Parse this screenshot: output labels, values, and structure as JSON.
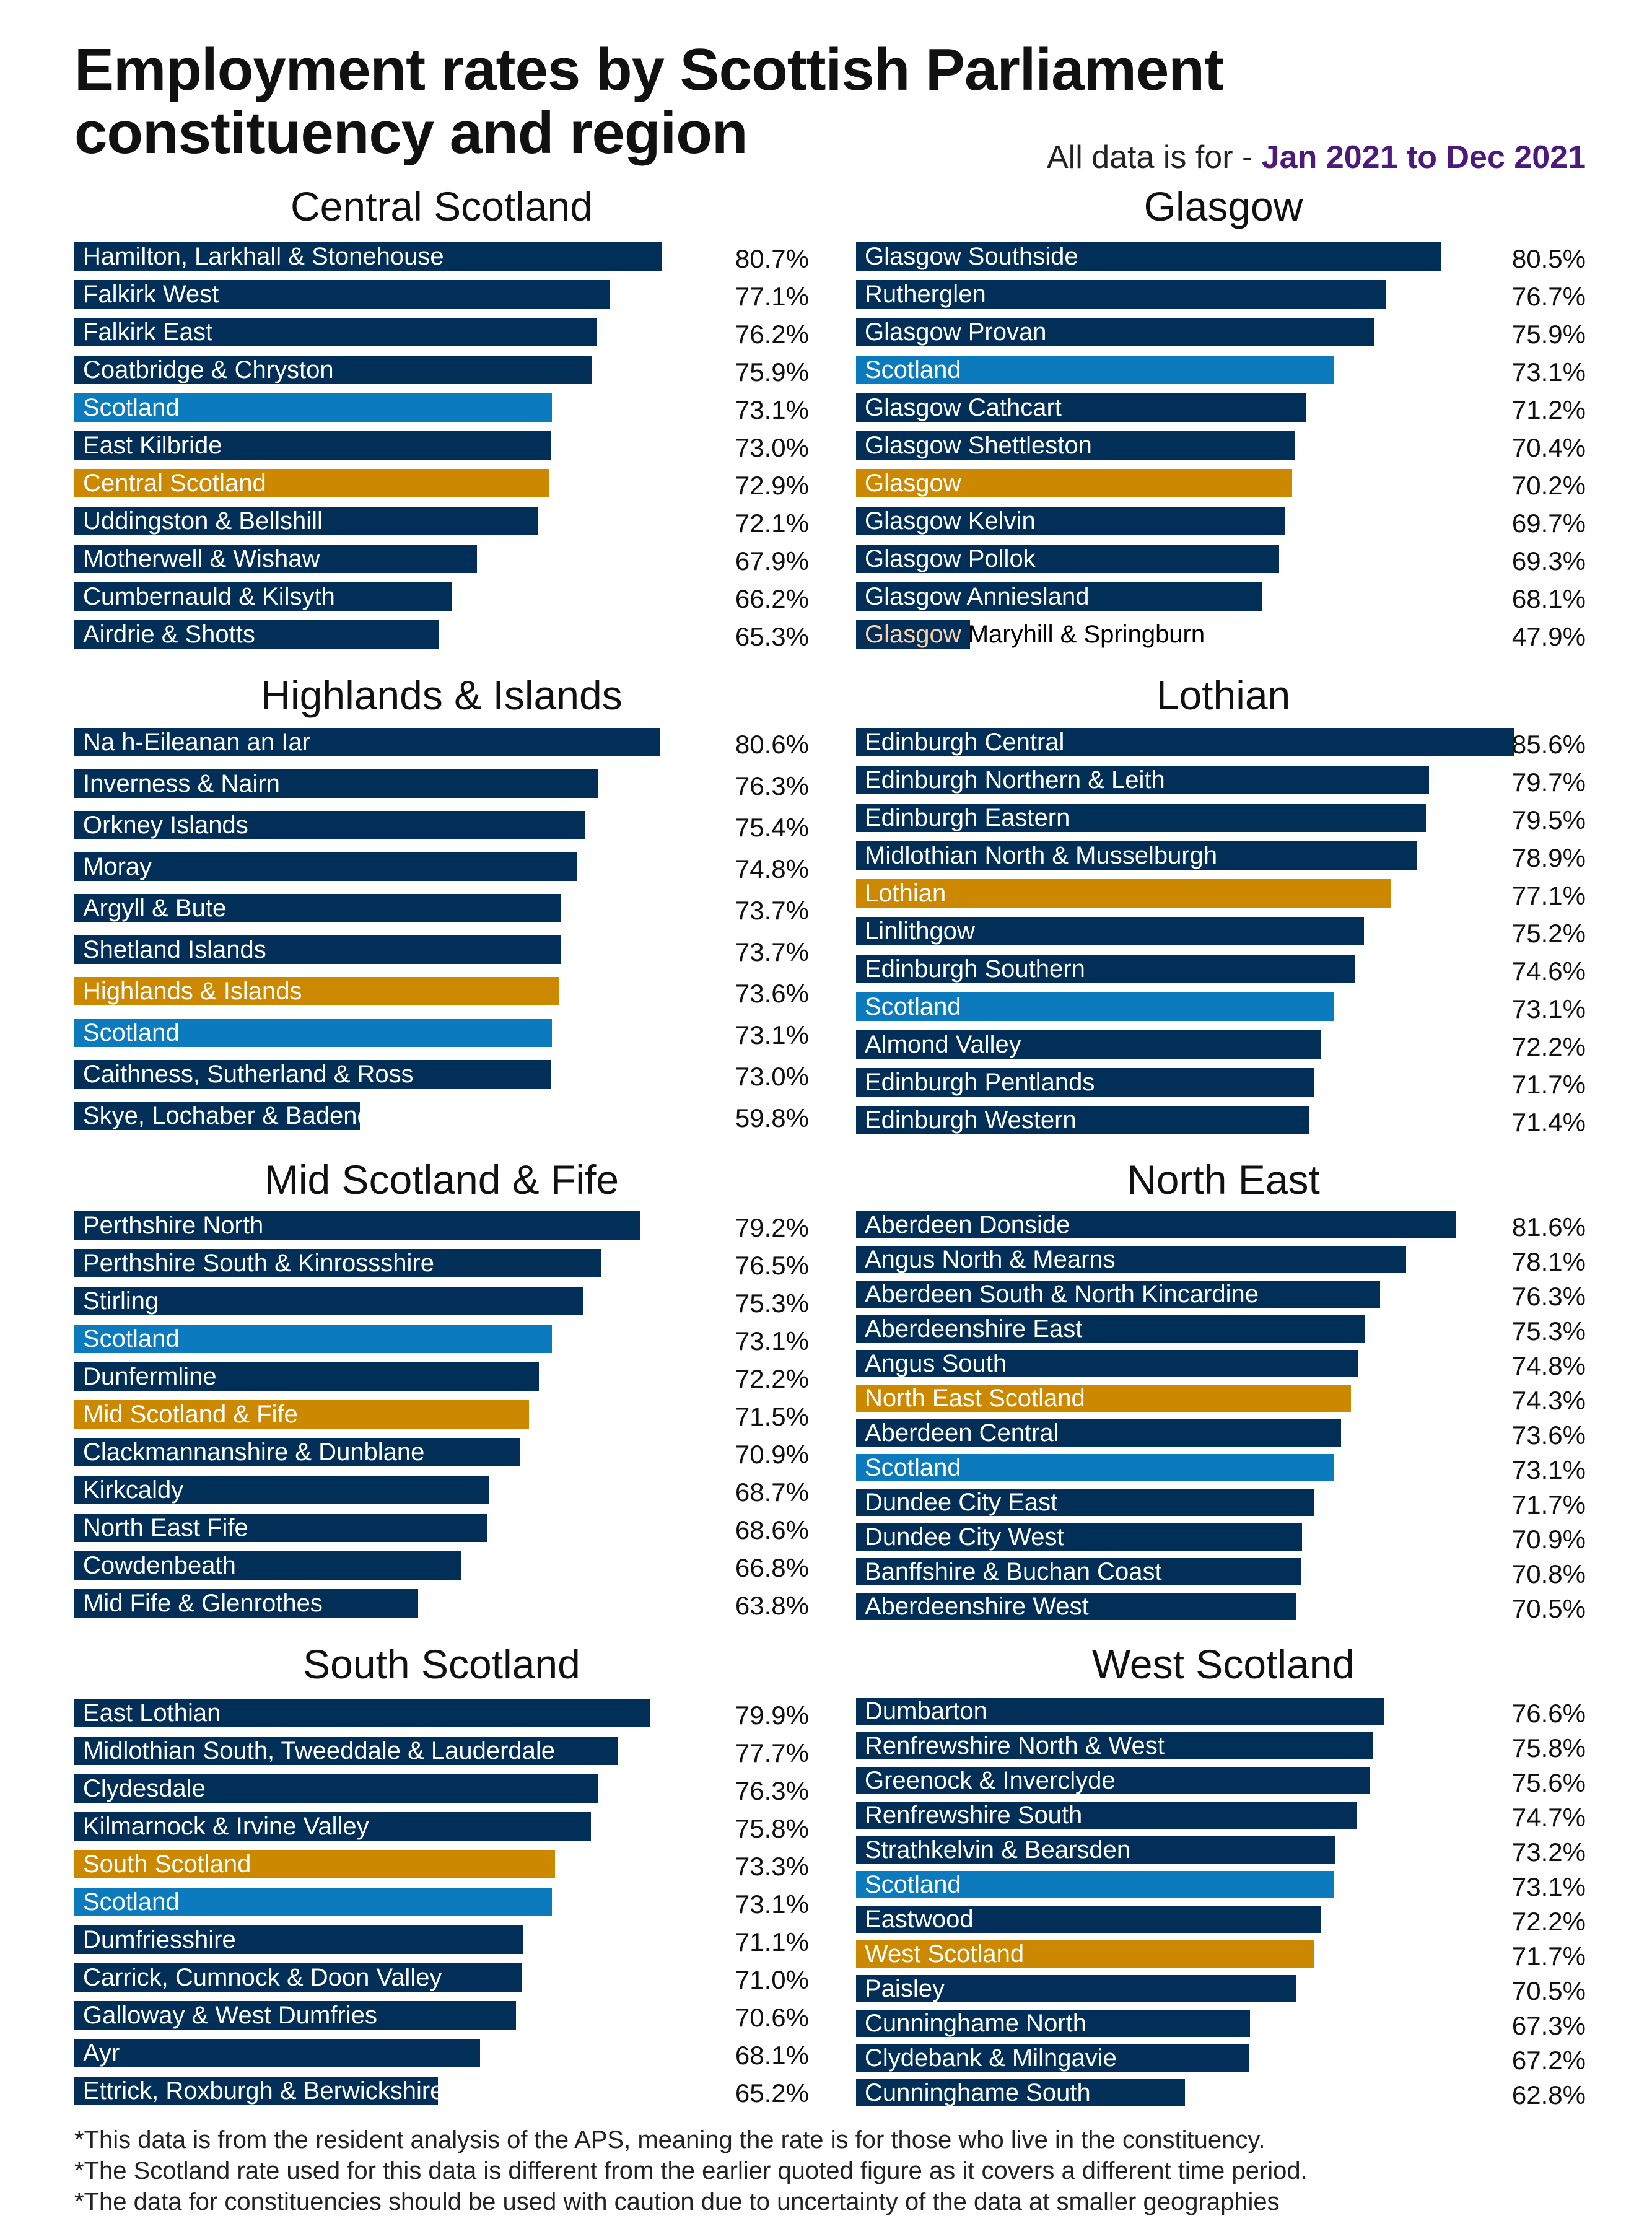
{
  "title": "Employment rates by Scottish Parliament constituency and region",
  "subtitle": {
    "prefix": "All data is for - ",
    "period": "Jan 2021 to Dec 2021"
  },
  "colors": {
    "constituency": "#012f57",
    "scotland": "#0b7bbd",
    "region": "#cc8900",
    "period": "#4b1a7a"
  },
  "footnotes": [
    "*This data is from the resident analysis of the APS, meaning the rate is for those who live in the constituency.",
    "*The Scotland rate used for this data is different from the earlier quoted figure as it covers a different time period.",
    "*The data for constituencies should be used with caution due to uncertainty of the data at smaller geographies"
  ],
  "chart_data": [
    {
      "type": "bar",
      "orientation": "horizontal",
      "title": "Central Scotland",
      "unit": "%",
      "rows": [
        {
          "label": "Hamilton, Larkhall & Stonehouse",
          "value": 80.7,
          "kind": "constituency"
        },
        {
          "label": "Falkirk West",
          "value": 77.1,
          "kind": "constituency"
        },
        {
          "label": "Falkirk East",
          "value": 76.2,
          "kind": "constituency"
        },
        {
          "label": "Coatbridge & Chryston",
          "value": 75.9,
          "kind": "constituency"
        },
        {
          "label": "Scotland",
          "value": 73.1,
          "kind": "scotland"
        },
        {
          "label": "East Kilbride",
          "value": 73.0,
          "kind": "constituency"
        },
        {
          "label": "Central Scotland",
          "value": 72.9,
          "kind": "region"
        },
        {
          "label": "Uddingston & Bellshill",
          "value": 72.1,
          "kind": "constituency"
        },
        {
          "label": "Motherwell & Wishaw",
          "value": 67.9,
          "kind": "constituency"
        },
        {
          "label": "Cumbernauld & Kilsyth",
          "value": 66.2,
          "kind": "constituency"
        },
        {
          "label": "Airdrie & Shotts",
          "value": 65.3,
          "kind": "constituency"
        }
      ]
    },
    {
      "type": "bar",
      "orientation": "horizontal",
      "title": "Glasgow",
      "unit": "%",
      "rows": [
        {
          "label": "Glasgow Southside",
          "value": 80.5,
          "kind": "constituency"
        },
        {
          "label": "Rutherglen",
          "value": 76.7,
          "kind": "constituency"
        },
        {
          "label": "Glasgow Provan",
          "value": 75.9,
          "kind": "constituency"
        },
        {
          "label": "Scotland",
          "value": 73.1,
          "kind": "scotland"
        },
        {
          "label": "Glasgow Cathcart",
          "value": 71.2,
          "kind": "constituency"
        },
        {
          "label": "Glasgow Shettleston",
          "value": 70.4,
          "kind": "constituency"
        },
        {
          "label": "Glasgow",
          "value": 70.2,
          "kind": "region"
        },
        {
          "label": "Glasgow Kelvin",
          "value": 69.7,
          "kind": "constituency"
        },
        {
          "label": "Glasgow Pollok",
          "value": 69.3,
          "kind": "constituency"
        },
        {
          "label": "Glasgow Anniesland",
          "value": 68.1,
          "kind": "constituency"
        },
        {
          "label": "Glasgow Maryhill & Springburn",
          "value": 47.9,
          "kind": "constituency"
        }
      ]
    },
    {
      "type": "bar",
      "orientation": "horizontal",
      "title": "Highlands & Islands",
      "unit": "%",
      "rows": [
        {
          "label": "Na h-Eileanan an Iar",
          "value": 80.6,
          "kind": "constituency"
        },
        {
          "label": "Inverness & Nairn",
          "value": 76.3,
          "kind": "constituency"
        },
        {
          "label": "Orkney Islands",
          "value": 75.4,
          "kind": "constituency"
        },
        {
          "label": "Moray",
          "value": 74.8,
          "kind": "constituency"
        },
        {
          "label": "Argyll & Bute",
          "value": 73.7,
          "kind": "constituency"
        },
        {
          "label": "Shetland Islands",
          "value": 73.7,
          "kind": "constituency"
        },
        {
          "label": "Highlands & Islands",
          "value": 73.6,
          "kind": "region"
        },
        {
          "label": "Scotland",
          "value": 73.1,
          "kind": "scotland"
        },
        {
          "label": "Caithness, Sutherland & Ross",
          "value": 73.0,
          "kind": "constituency"
        },
        {
          "label": "Skye, Lochaber & Badenoch",
          "value": 59.8,
          "kind": "constituency"
        }
      ]
    },
    {
      "type": "bar",
      "orientation": "horizontal",
      "title": "Lothian",
      "unit": "%",
      "rows": [
        {
          "label": "Edinburgh Central",
          "value": 85.6,
          "kind": "constituency"
        },
        {
          "label": "Edinburgh Northern & Leith",
          "value": 79.7,
          "kind": "constituency"
        },
        {
          "label": "Edinburgh Eastern",
          "value": 79.5,
          "kind": "constituency"
        },
        {
          "label": "Midlothian North & Musselburgh",
          "value": 78.9,
          "kind": "constituency"
        },
        {
          "label": "Lothian",
          "value": 77.1,
          "kind": "region"
        },
        {
          "label": "Linlithgow",
          "value": 75.2,
          "kind": "constituency"
        },
        {
          "label": "Edinburgh Southern",
          "value": 74.6,
          "kind": "constituency"
        },
        {
          "label": "Scotland",
          "value": 73.1,
          "kind": "scotland"
        },
        {
          "label": "Almond Valley",
          "value": 72.2,
          "kind": "constituency"
        },
        {
          "label": "Edinburgh Pentlands",
          "value": 71.7,
          "kind": "constituency"
        },
        {
          "label": "Edinburgh Western",
          "value": 71.4,
          "kind": "constituency"
        }
      ]
    },
    {
      "type": "bar",
      "orientation": "horizontal",
      "title": "Mid Scotland & Fife",
      "unit": "%",
      "rows": [
        {
          "label": "Perthshire North",
          "value": 79.2,
          "kind": "constituency"
        },
        {
          "label": "Perthshire South & Kinrossshire",
          "value": 76.5,
          "kind": "constituency"
        },
        {
          "label": "Stirling",
          "value": 75.3,
          "kind": "constituency"
        },
        {
          "label": "Scotland",
          "value": 73.1,
          "kind": "scotland"
        },
        {
          "label": "Dunfermline",
          "value": 72.2,
          "kind": "constituency"
        },
        {
          "label": "Mid Scotland & Fife",
          "value": 71.5,
          "kind": "region"
        },
        {
          "label": "Clackmannanshire & Dunblane",
          "value": 70.9,
          "kind": "constituency"
        },
        {
          "label": "Kirkcaldy",
          "value": 68.7,
          "kind": "constituency"
        },
        {
          "label": "North East Fife",
          "value": 68.6,
          "kind": "constituency"
        },
        {
          "label": "Cowdenbeath",
          "value": 66.8,
          "kind": "constituency"
        },
        {
          "label": "Mid Fife & Glenrothes",
          "value": 63.8,
          "kind": "constituency"
        }
      ]
    },
    {
      "type": "bar",
      "orientation": "horizontal",
      "title": "North East",
      "unit": "%",
      "rows": [
        {
          "label": "Aberdeen Donside",
          "value": 81.6,
          "kind": "constituency"
        },
        {
          "label": "Angus North & Mearns",
          "value": 78.1,
          "kind": "constituency"
        },
        {
          "label": "Aberdeen South & North Kincardine",
          "value": 76.3,
          "kind": "constituency"
        },
        {
          "label": "Aberdeenshire East",
          "value": 75.3,
          "kind": "constituency"
        },
        {
          "label": "Angus South",
          "value": 74.8,
          "kind": "constituency"
        },
        {
          "label": "North East Scotland",
          "value": 74.3,
          "kind": "region"
        },
        {
          "label": "Aberdeen Central",
          "value": 73.6,
          "kind": "constituency"
        },
        {
          "label": "Scotland",
          "value": 73.1,
          "kind": "scotland"
        },
        {
          "label": "Dundee City East",
          "value": 71.7,
          "kind": "constituency"
        },
        {
          "label": "Dundee City West",
          "value": 70.9,
          "kind": "constituency"
        },
        {
          "label": "Banffshire & Buchan Coast",
          "value": 70.8,
          "kind": "constituency"
        },
        {
          "label": "Aberdeenshire West",
          "value": 70.5,
          "kind": "constituency"
        }
      ]
    },
    {
      "type": "bar",
      "orientation": "horizontal",
      "title": "South Scotland",
      "unit": "%",
      "rows": [
        {
          "label": "East Lothian",
          "value": 79.9,
          "kind": "constituency"
        },
        {
          "label": "Midlothian South, Tweeddale & Lauderdale",
          "value": 77.7,
          "kind": "constituency"
        },
        {
          "label": "Clydesdale",
          "value": 76.3,
          "kind": "constituency"
        },
        {
          "label": "Kilmarnock & Irvine Valley",
          "value": 75.8,
          "kind": "constituency"
        },
        {
          "label": "South Scotland",
          "value": 73.3,
          "kind": "region"
        },
        {
          "label": "Scotland",
          "value": 73.1,
          "kind": "scotland"
        },
        {
          "label": "Dumfriesshire",
          "value": 71.1,
          "kind": "constituency"
        },
        {
          "label": "Carrick, Cumnock & Doon Valley",
          "value": 71.0,
          "kind": "constituency"
        },
        {
          "label": "Galloway & West Dumfries",
          "value": 70.6,
          "kind": "constituency"
        },
        {
          "label": "Ayr",
          "value": 68.1,
          "kind": "constituency"
        },
        {
          "label": "Ettrick, Roxburgh & Berwickshire",
          "value": 65.2,
          "kind": "constituency"
        }
      ]
    },
    {
      "type": "bar",
      "orientation": "horizontal",
      "title": "West Scotland",
      "unit": "%",
      "rows": [
        {
          "label": "Dumbarton",
          "value": 76.6,
          "kind": "constituency"
        },
        {
          "label": "Renfrewshire North & West",
          "value": 75.8,
          "kind": "constituency"
        },
        {
          "label": "Greenock & Inverclyde",
          "value": 75.6,
          "kind": "constituency"
        },
        {
          "label": "Renfrewshire South",
          "value": 74.7,
          "kind": "constituency"
        },
        {
          "label": "Strathkelvin & Bearsden",
          "value": 73.2,
          "kind": "constituency"
        },
        {
          "label": "Scotland",
          "value": 73.1,
          "kind": "scotland"
        },
        {
          "label": "Eastwood",
          "value": 72.2,
          "kind": "constituency"
        },
        {
          "label": "West Scotland",
          "value": 71.7,
          "kind": "region"
        },
        {
          "label": "Paisley",
          "value": 70.5,
          "kind": "constituency"
        },
        {
          "label": "Cunninghame North",
          "value": 67.3,
          "kind": "constituency"
        },
        {
          "label": "Clydebank & Milngavie",
          "value": 67.2,
          "kind": "constituency"
        },
        {
          "label": "Cunninghame South",
          "value": 62.8,
          "kind": "constituency"
        }
      ]
    }
  ]
}
